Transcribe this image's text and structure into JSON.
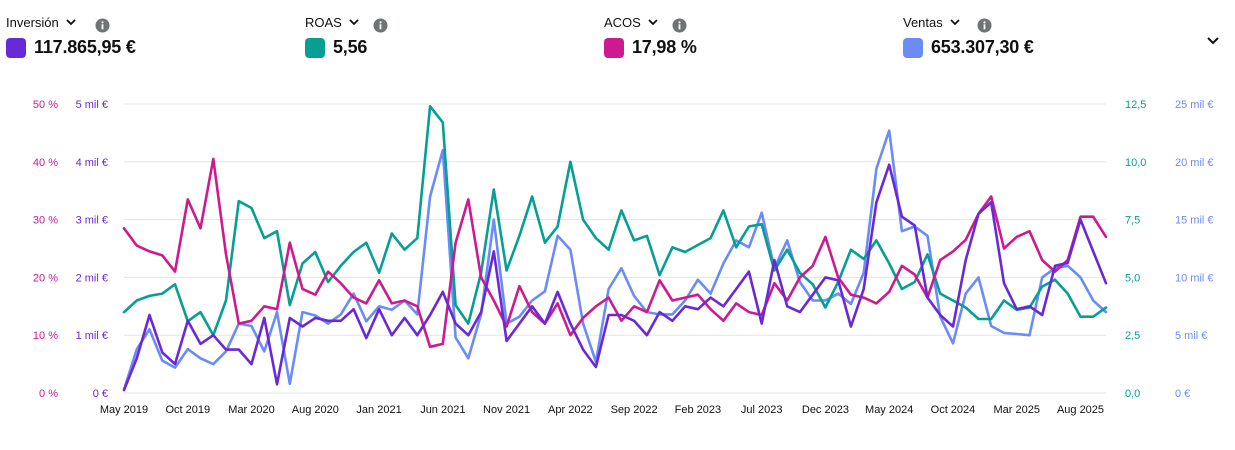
{
  "metrics": [
    {
      "name": "Inversión",
      "value": "117.865,95 €",
      "color": "#6a29d6"
    },
    {
      "name": "ROAS",
      "value": "5,56",
      "color": "#079e94"
    },
    {
      "name": "ACOS",
      "value": "17,98 %",
      "color": "#cd1a90"
    },
    {
      "name": "Ventas",
      "value": "653.307,30 €",
      "color": "#6b8cf8"
    }
  ],
  "icons": {
    "dropdown": "chevron-down-icon",
    "info": "info-icon",
    "collapse": "chevron-down-icon"
  },
  "chart_data": {
    "type": "line",
    "x": [
      "May 2019",
      "Jun 2019",
      "Jul 2019",
      "Aug 2019",
      "Sep 2019",
      "Oct 2019",
      "Nov 2019",
      "Dec 2019",
      "Jan 2020",
      "Feb 2020",
      "Mar 2020",
      "Apr 2020",
      "May 2020",
      "Jun 2020",
      "Jul 2020",
      "Aug 2020",
      "Sep 2020",
      "Oct 2020",
      "Nov 2020",
      "Dec 2020",
      "Jan 2021",
      "Feb 2021",
      "Mar 2021",
      "Apr 2021",
      "May 2021",
      "Jun 2021",
      "Jul 2021",
      "Aug 2021",
      "Sep 2021",
      "Oct 2021",
      "Nov 2021",
      "Dec 2021",
      "Jan 2022",
      "Feb 2022",
      "Mar 2022",
      "Apr 2022",
      "May 2022",
      "Jun 2022",
      "Jul 2022",
      "Aug 2022",
      "Sep 2022",
      "Oct 2022",
      "Nov 2022",
      "Dec 2022",
      "Jan 2023",
      "Feb 2023",
      "Mar 2023",
      "Apr 2023",
      "May 2023",
      "Jun 2023",
      "Jul 2023",
      "Aug 2023",
      "Sep 2023",
      "Oct 2023",
      "Nov 2023",
      "Dec 2023",
      "Jan 2024",
      "Feb 2024",
      "Mar 2024",
      "Apr 2024",
      "May 2024",
      "Jun 2024",
      "Jul 2024",
      "Aug 2024",
      "Sep 2024",
      "Oct 2024",
      "Nov 2024",
      "Dec 2024",
      "Jan 2025",
      "Feb 2025",
      "Mar 2025",
      "Apr 2025",
      "May 2025",
      "Jun 2025",
      "Jul 2025",
      "Aug 2025",
      "Sep 2025",
      "Oct 2025"
    ],
    "x_tick_labels": [
      "May 2019",
      "Oct 2019",
      "Mar 2020",
      "Aug 2020",
      "Jan 2021",
      "Jun 2021",
      "Nov 2021",
      "Apr 2022",
      "Sep 2022",
      "Feb 2023",
      "Jul 2023",
      "Dec 2023",
      "May 2024",
      "Oct 2024",
      "Mar 2025",
      "Aug 2025"
    ],
    "axes": {
      "acos": {
        "side": "left",
        "ticks": [
          "0 %",
          "10 %",
          "20 %",
          "30 %",
          "40 %",
          "50 %"
        ],
        "range": [
          0,
          50
        ],
        "color": "#cd1a90"
      },
      "inversion": {
        "side": "left",
        "ticks": [
          "0 €",
          "1 mil €",
          "2 mil €",
          "3 mil €",
          "4 mil €",
          "5 mil €"
        ],
        "range": [
          0,
          5000
        ],
        "color": "#6a29d6"
      },
      "roas": {
        "side": "right",
        "ticks": [
          "0,0",
          "2,5",
          "5,0",
          "7,5",
          "10,0",
          "12,5"
        ],
        "range": [
          0,
          12.5
        ],
        "color": "#079e94"
      },
      "ventas": {
        "side": "right",
        "ticks": [
          "0 €",
          "5 mil €",
          "10 mil €",
          "15 mil €",
          "20 mil €",
          "25 mil €"
        ],
        "range": [
          0,
          25000
        ],
        "color": "#6b8cf8"
      }
    },
    "series": [
      {
        "name": "Ventas",
        "axis": "ventas",
        "color": "#6b8cf8",
        "values": [
          300,
          3800,
          5500,
          2800,
          2200,
          3800,
          3000,
          2500,
          3600,
          6000,
          5800,
          3600,
          7000,
          800,
          7000,
          6700,
          6000,
          6800,
          8600,
          6200,
          7500,
          7200,
          8000,
          6800,
          17000,
          21000,
          4800,
          3000,
          6800,
          15000,
          6000,
          6600,
          8000,
          8800,
          13600,
          12400,
          6000,
          2700,
          9000,
          10800,
          8400,
          7000,
          6800,
          6800,
          8000,
          9800,
          8600,
          11200,
          13200,
          12600,
          15600,
          10800,
          13200,
          9600,
          8000,
          8000,
          8600,
          7700,
          10400,
          19400,
          22700,
          14000,
          14400,
          13600,
          6600,
          4300,
          8600,
          10000,
          5800,
          5200,
          5100,
          5000,
          10000,
          10800,
          11000,
          10000,
          8000,
          7000
        ]
      },
      {
        "name": "ROAS",
        "axis": "roas",
        "color": "#079e94",
        "values": [
          3.5,
          4.0,
          4.2,
          4.3,
          4.7,
          3.1,
          3.5,
          2.5,
          4.0,
          8.3,
          8.0,
          6.7,
          7.0,
          3.8,
          5.6,
          6.1,
          4.8,
          5.5,
          6.1,
          6.5,
          5.2,
          6.9,
          6.2,
          6.7,
          12.4,
          11.7,
          3.8,
          3.0,
          5.2,
          8.8,
          5.3,
          6.8,
          8.5,
          6.5,
          7.2,
          10.0,
          7.5,
          6.7,
          6.2,
          7.9,
          6.6,
          6.8,
          5.1,
          6.3,
          6.1,
          6.4,
          6.7,
          7.9,
          6.3,
          7.2,
          7.3,
          5.3,
          6.2,
          5.2,
          4.7,
          3.7,
          4.8,
          6.2,
          5.8,
          6.6,
          5.6,
          4.5,
          4.8,
          6.0,
          4.3,
          4.0,
          3.7,
          3.2,
          3.2,
          4.0,
          3.6,
          3.7,
          4.6,
          4.9,
          4.3,
          3.3,
          3.3,
          3.7
        ]
      },
      {
        "name": "ACOS",
        "axis": "acos",
        "color": "#cd1a90",
        "values": [
          28.5,
          25.5,
          24.5,
          23.8,
          21.0,
          33.5,
          28.5,
          40.5,
          24.0,
          12.0,
          12.5,
          15.0,
          14.5,
          26.0,
          18.0,
          17.0,
          21.0,
          19.0,
          16.5,
          15.5,
          19.5,
          15.5,
          16.0,
          15.0,
          8.0,
          8.5,
          26.0,
          33.5,
          20.0,
          16.0,
          11.5,
          18.5,
          14.0,
          12.0,
          15.5,
          10.0,
          13.0,
          15.0,
          16.5,
          12.5,
          15.0,
          14.0,
          19.5,
          16.0,
          16.5,
          17.0,
          14.5,
          12.5,
          15.5,
          14.0,
          13.5,
          19.0,
          16.0,
          20.0,
          22.0,
          27.0,
          20.0,
          17.0,
          16.5,
          15.5,
          17.5,
          22.0,
          20.5,
          16.5,
          23.0,
          24.5,
          26.5,
          31.0,
          34.0,
          25.0,
          27.0,
          28.0,
          23.0,
          21.0,
          23.0,
          30.5,
          30.5,
          27.0
        ]
      },
      {
        "name": "Inversión",
        "axis": "inversion",
        "color": "#6a29d6",
        "values": [
          50,
          600,
          1350,
          700,
          500,
          1250,
          850,
          1000,
          750,
          750,
          500,
          1300,
          150,
          1300,
          1150,
          1300,
          1250,
          1250,
          1450,
          950,
          1450,
          1000,
          1300,
          1000,
          1350,
          1750,
          1200,
          1000,
          1400,
          2450,
          900,
          1200,
          1500,
          1200,
          1750,
          1200,
          750,
          450,
          1350,
          1350,
          1250,
          1000,
          1400,
          1250,
          1500,
          1450,
          1650,
          1500,
          1800,
          2100,
          1200,
          2300,
          1500,
          1400,
          1700,
          2000,
          1950,
          1150,
          1800,
          3300,
          3950,
          3050,
          2900,
          1650,
          1350,
          1150,
          2300,
          3100,
          3300,
          1900,
          1450,
          1500,
          1350,
          2200,
          2250,
          3000,
          2450,
          1900
        ]
      }
    ]
  }
}
